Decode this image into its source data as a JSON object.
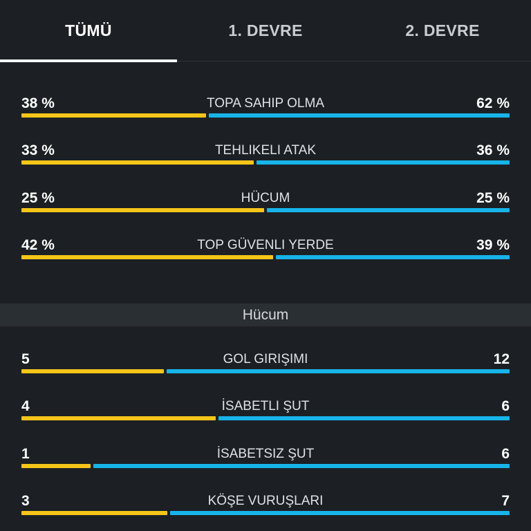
{
  "colors": {
    "home": "#f5c518",
    "away": "#17b4ea",
    "background": "#1c2024"
  },
  "tabs": [
    {
      "label": "TÜMÜ",
      "active": true
    },
    {
      "label": "1. DEVRE",
      "active": false
    },
    {
      "label": "2. DEVRE",
      "active": false
    }
  ],
  "overview": [
    {
      "label": "TOPA SAHIP OLMA",
      "home": "38 %",
      "away": "62 %",
      "home_value": 38,
      "away_value": 62
    },
    {
      "label": "TEHLIKELI ATAK",
      "home": "33 %",
      "away": "36 %",
      "home_value": 33,
      "away_value": 36
    },
    {
      "label": "HÜCUM",
      "home": "25 %",
      "away": "25 %",
      "home_value": 25,
      "away_value": 25
    },
    {
      "label": "TOP GÜVENLI YERDE",
      "home": "42 %",
      "away": "39 %",
      "home_value": 42,
      "away_value": 39
    }
  ],
  "section": {
    "title": "Hücum"
  },
  "attack": [
    {
      "label": "GOL GIRIŞIMI",
      "home": "5",
      "away": "12",
      "home_value": 5,
      "away_value": 12
    },
    {
      "label": "İSABETLI ŞUT",
      "home": "4",
      "away": "6",
      "home_value": 4,
      "away_value": 6
    },
    {
      "label": "İSABETSIZ ŞUT",
      "home": "1",
      "away": "6",
      "home_value": 1,
      "away_value": 6
    },
    {
      "label": "KÖŞE VURUŞLARI",
      "home": "3",
      "away": "7",
      "home_value": 3,
      "away_value": 7
    }
  ]
}
